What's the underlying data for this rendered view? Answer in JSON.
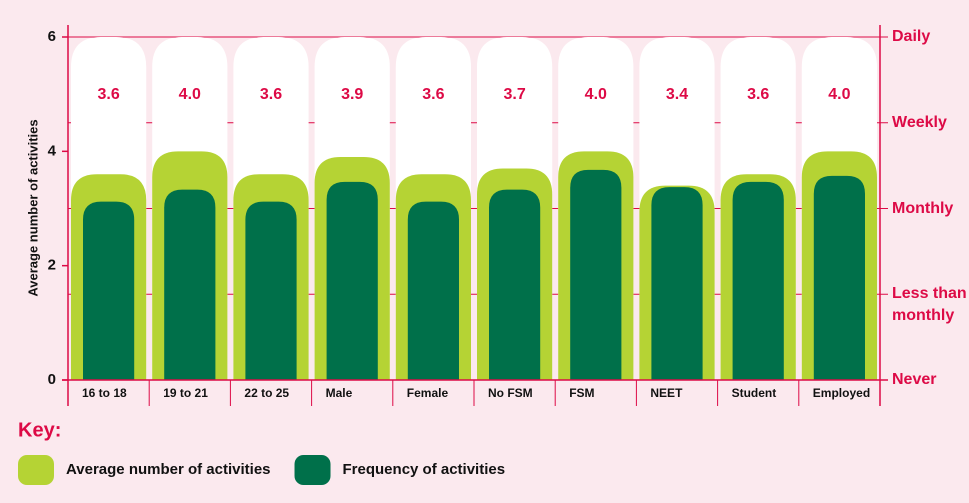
{
  "chart_data": {
    "type": "bar",
    "y_label": "Average number of activities",
    "legend_title": "Key:",
    "categories": [
      "16 to 18",
      "19 to 21",
      "22 to 25",
      "Male",
      "Female",
      "No FSM",
      "FSM",
      "NEET",
      "Student",
      "Employed"
    ],
    "series": [
      {
        "name": "Average number of activities",
        "color": "#b5d334",
        "values": [
          3.6,
          4.0,
          3.6,
          3.9,
          3.6,
          3.7,
          4.0,
          3.4,
          3.6,
          4.0
        ],
        "value_labels": [
          "3.6",
          "4.0",
          "3.6",
          "3.9",
          "3.6",
          "3.7",
          "4.0",
          "3.4",
          "3.6",
          "4.0"
        ]
      },
      {
        "name": "Frequency of activities",
        "color": "#00704a",
        "axis": "y2",
        "values": [
          2.08,
          2.22,
          2.08,
          2.31,
          2.08,
          2.22,
          2.45,
          2.25,
          2.31,
          2.38
        ]
      }
    ],
    "ylim": [
      0,
      6
    ],
    "yticks": [
      0,
      2,
      4,
      6
    ],
    "y2lim": [
      0,
      4
    ],
    "y2ticks": [
      {
        "value": 0,
        "label": "Never"
      },
      {
        "value": 1,
        "label": "Less than monthly"
      },
      {
        "value": 2,
        "label": "Monthly"
      },
      {
        "value": 3,
        "label": "Weekly"
      },
      {
        "value": 4,
        "label": "Daily"
      }
    ]
  }
}
